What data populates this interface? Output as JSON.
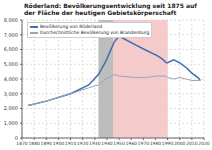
{
  "chart_data": {
    "type": "line",
    "title": "Röderland: Bevölkerungsentwicklung seit 1875 auf der Fläche der heutigen Gebietskörperschaft",
    "series": [
      {
        "name": "Bevölkerung von Röderland",
        "color": "#3f6fb0",
        "x": [
          1875,
          1890,
          1910,
          1925,
          1933,
          1939,
          1946,
          1950,
          1964,
          1971,
          1981,
          1985,
          1989,
          1990,
          1995,
          2000,
          2005,
          2010,
          2015,
          2017
        ],
        "values": [
          2200,
          2500,
          3000,
          3600,
          4300,
          5200,
          6500,
          6900,
          6300,
          6000,
          5600,
          5400,
          5100,
          5100,
          5300,
          5100,
          4800,
          4400,
          4100,
          3900
        ]
      },
      {
        "name": "Durchschnittliche Bevölkerung von Brandenburg",
        "color": "#9aa6b8",
        "x": [
          1875,
          1890,
          1910,
          1925,
          1933,
          1939,
          1946,
          1950,
          1964,
          1971,
          1981,
          1985,
          1989,
          1990,
          1995,
          2000,
          2005,
          2010,
          2015,
          2017
        ],
        "values": [
          2200,
          2500,
          3000,
          3400,
          3600,
          4000,
          4300,
          4200,
          4100,
          4100,
          4200,
          4200,
          4200,
          4100,
          4000,
          4100,
          4000,
          3900,
          3900,
          3900
        ]
      }
    ],
    "shaded_periods": [
      {
        "from": 1933,
        "to": 1945,
        "color": "#bdbdbd"
      },
      {
        "from": 1945,
        "to": 1990,
        "color": "#f5caca"
      }
    ],
    "xlim": [
      1870,
      2020
    ],
    "xticks": [
      1870,
      1880,
      1890,
      1900,
      1910,
      1920,
      1930,
      1940,
      1950,
      1960,
      1970,
      1980,
      1990,
      2000,
      2010,
      2020
    ],
    "ylim": [
      0,
      8000
    ],
    "yticks": [
      0,
      {
        "value": 1000,
        "label": "1,000"
      },
      {
        "value": 2000,
        "label": "2,000"
      },
      {
        "value": 3000,
        "label": "3,000"
      },
      {
        "value": 4000,
        "label": "4,000"
      },
      {
        "value": 5000,
        "label": "5,000"
      },
      {
        "value": 6000,
        "label": "6,000"
      },
      {
        "value": 7000,
        "label": "7,000"
      },
      {
        "value": 8000,
        "label": "8,000"
      }
    ],
    "grid": true,
    "legend": "upper left"
  }
}
